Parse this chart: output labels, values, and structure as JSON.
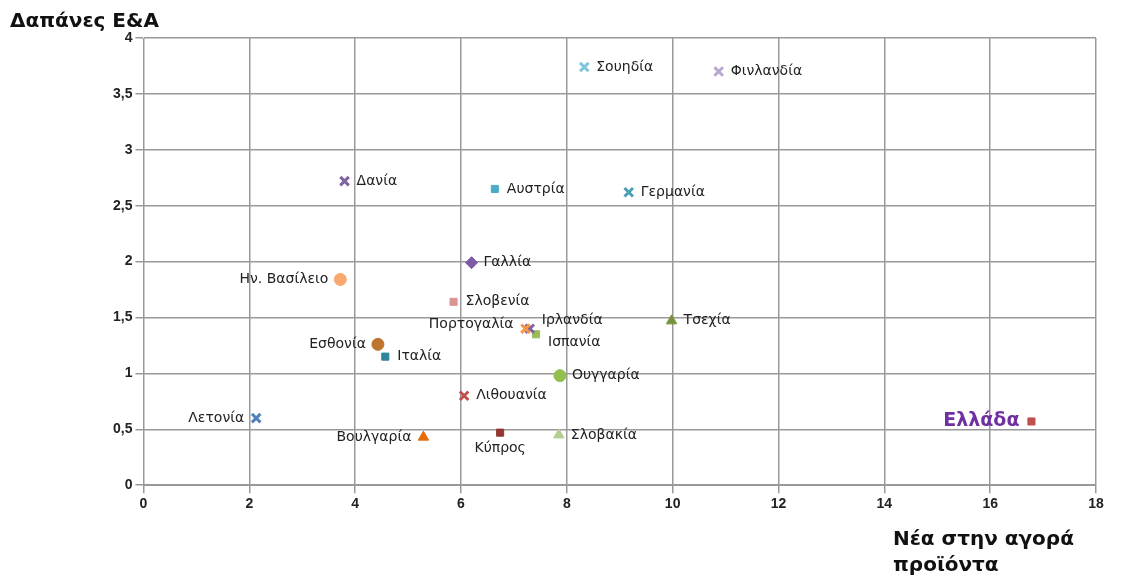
{
  "chart_data": {
    "type": "scatter",
    "ylabel": "Δαπάνες Ε&Α",
    "xlabel": "Νέα στην αγορά προϊόντα",
    "xlim": [
      0,
      18
    ],
    "xticks": [
      0,
      2,
      4,
      6,
      8,
      10,
      12,
      14,
      16,
      18
    ],
    "ylim": [
      0,
      4
    ],
    "yticks": [
      0,
      {
        "value": 0.5,
        "label": "0,5"
      },
      1,
      {
        "value": 1.5,
        "label": "1,5"
      },
      2,
      {
        "value": 2.5,
        "label": "2,5"
      },
      3,
      {
        "value": 3.5,
        "label": "3,5"
      },
      4
    ],
    "grid": true,
    "legend": false,
    "series": [
      {
        "name": "Σουηδία",
        "color": "#7fc5e0",
        "marker": "cross",
        "x": [
          8.33
        ],
        "values": [
          3.74
        ]
      },
      {
        "name": "Φινλανδία",
        "color": "#b8a6d0",
        "marker": "cross",
        "x": [
          10.87
        ],
        "values": [
          3.7
        ]
      },
      {
        "name": "Δανία",
        "color": "#8064a2",
        "marker": "cross",
        "x": [
          3.8
        ],
        "values": [
          2.72
        ]
      },
      {
        "name": "Αυστρία",
        "color": "#4bacc6",
        "marker": "square",
        "x": [
          6.64
        ],
        "values": [
          2.65
        ]
      },
      {
        "name": "Γερμανία",
        "color": "#4a9fb5",
        "marker": "cross",
        "x": [
          9.17
        ],
        "values": [
          2.62
        ]
      },
      {
        "name": "Γαλλία",
        "color": "#7d5ba6",
        "marker": "diamond",
        "x": [
          6.2
        ],
        "values": [
          1.99
        ]
      },
      {
        "name": "Ην. Βασίλειο",
        "color": "#f9a870",
        "marker": "circle",
        "x": [
          3.72
        ],
        "values": [
          1.84
        ]
      },
      {
        "name": "Σλοβενία",
        "color": "#d99694",
        "marker": "square",
        "x": [
          5.86
        ],
        "values": [
          1.64
        ]
      },
      {
        "name": "Πορτογαλία",
        "color": "#f79646",
        "marker": "cross",
        "x": [
          7.22
        ],
        "values": [
          1.4
        ]
      },
      {
        "name": "Ιρλανδία",
        "color": "#8064a2",
        "marker": "cross",
        "x": [
          7.3
        ],
        "values": [
          1.4
        ]
      },
      {
        "name": "Ισπανία",
        "color": "#9bbb59",
        "marker": "square",
        "x": [
          7.42
        ],
        "values": [
          1.35
        ]
      },
      {
        "name": "Εσθονία",
        "color": "#c0752f",
        "marker": "circle",
        "x": [
          4.43
        ],
        "values": [
          1.26
        ]
      },
      {
        "name": "Ιταλία",
        "color": "#31859c",
        "marker": "square",
        "x": [
          4.57
        ],
        "values": [
          1.15
        ]
      },
      {
        "name": "Ουγγαρία",
        "color": "#92c050",
        "marker": "circle",
        "x": [
          7.87
        ],
        "values": [
          0.98
        ]
      },
      {
        "name": "Λιθουανία",
        "color": "#c0504d",
        "marker": "cross",
        "x": [
          6.06
        ],
        "values": [
          0.8
        ]
      },
      {
        "name": "Λετονία",
        "color": "#4f81bd",
        "marker": "cross",
        "x": [
          2.13
        ],
        "values": [
          0.6
        ]
      },
      {
        "name": "Βουλγαρία",
        "color": "#e46c0a",
        "marker": "triangle",
        "x": [
          5.29
        ],
        "values": [
          0.43
        ]
      },
      {
        "name": "Κύπρος",
        "color": "#943634",
        "marker": "square",
        "x": [
          6.74
        ],
        "values": [
          0.47
        ]
      },
      {
        "name": "Σλοβακία",
        "color": "#b3cf8f",
        "marker": "triangle",
        "x": [
          7.85
        ],
        "values": [
          0.45
        ]
      },
      {
        "name": "Τσεχία",
        "color": "#77933c",
        "marker": "triangle",
        "x": [
          9.98
        ],
        "values": [
          1.47
        ]
      },
      {
        "name": "Ελλάδα",
        "color": "#c0504d",
        "marker": "square",
        "x": [
          16.78
        ],
        "values": [
          0.57
        ]
      }
    ]
  }
}
